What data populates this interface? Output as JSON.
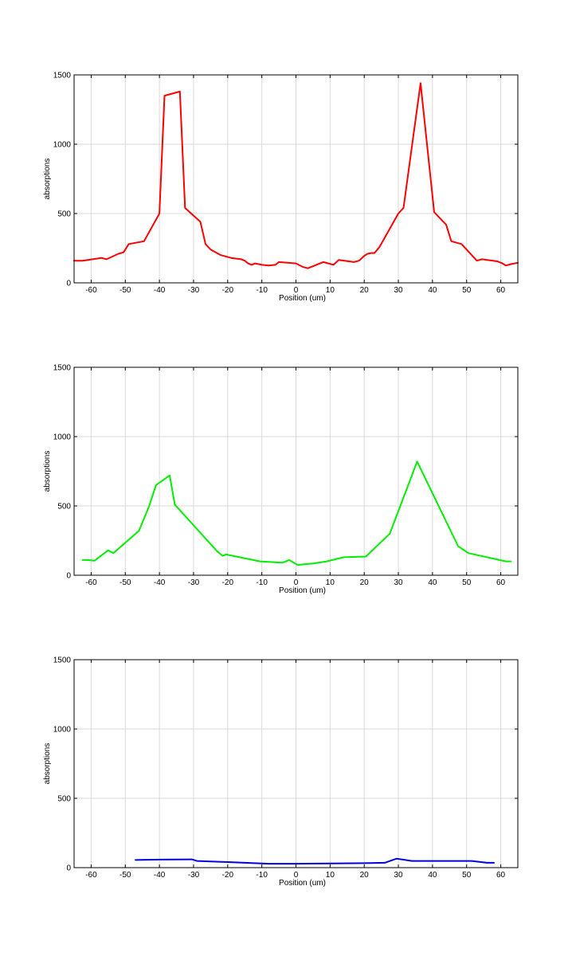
{
  "chart_data": [
    {
      "type": "line",
      "title": "",
      "xlabel": "Position (um)",
      "ylabel": "absorptions",
      "xlim": [
        -65,
        65
      ],
      "ylim": [
        0,
        1500
      ],
      "xticks": [
        -60,
        -50,
        -40,
        -30,
        -20,
        -10,
        0,
        10,
        20,
        30,
        40,
        50,
        60
      ],
      "yticks": [
        0,
        500,
        1000,
        1500
      ],
      "grid": true,
      "series": [
        {
          "color": "#ff0000",
          "x": [
            -65,
            -62.5,
            -57,
            -55.5,
            -52,
            -50.5,
            -49,
            -44.5,
            -40,
            -38.5,
            -34,
            -32.5,
            -28,
            -26.5,
            -25,
            -22,
            -19,
            -16,
            -15,
            -14,
            -13,
            -12,
            -10,
            -8,
            -6,
            -5,
            0,
            2,
            3.5,
            8,
            11,
            12.5,
            17,
            18.5,
            20,
            21,
            22,
            23,
            24.5,
            30,
            31.5,
            36.5,
            40.5,
            44,
            45.5,
            48.5,
            53,
            54.5,
            59,
            60.5,
            61.5,
            63,
            65
          ],
          "y": [
            160,
            160,
            180,
            170,
            210,
            220,
            280,
            300,
            500,
            1350,
            1380,
            540,
            440,
            280,
            240,
            200,
            180,
            170,
            160,
            140,
            130,
            140,
            130,
            125,
            130,
            150,
            140,
            115,
            105,
            150,
            130,
            165,
            150,
            160,
            195,
            210,
            215,
            215,
            260,
            500,
            540,
            1440,
            510,
            420,
            300,
            280,
            160,
            170,
            155,
            140,
            125,
            135,
            145
          ]
        }
      ]
    },
    {
      "type": "line",
      "title": "",
      "xlabel": "Position (um)",
      "ylabel": "absorptions",
      "xlim": [
        -65,
        65
      ],
      "ylim": [
        0,
        1500
      ],
      "xticks": [
        -60,
        -50,
        -40,
        -30,
        -20,
        -10,
        0,
        10,
        20,
        30,
        40,
        50,
        60
      ],
      "yticks": [
        0,
        500,
        1000,
        1500
      ],
      "grid": true,
      "series": [
        {
          "color": "#00ee00",
          "x": [
            -62.5,
            -61,
            -59,
            -55,
            -53.5,
            -46,
            -43,
            -41,
            -37,
            -35.5,
            -23,
            -21.5,
            -20.5,
            -10.5,
            -4,
            -2,
            0.5,
            5,
            9,
            14,
            20.5,
            27.5,
            35.5,
            47.5,
            50.5,
            61.5,
            63
          ],
          "y": [
            110,
            110,
            105,
            180,
            160,
            320,
            500,
            650,
            720,
            510,
            170,
            140,
            150,
            100,
            90,
            110,
            75,
            85,
            100,
            130,
            135,
            300,
            820,
            210,
            160,
            100,
            100
          ]
        }
      ]
    },
    {
      "type": "line",
      "title": "",
      "xlabel": "Position (um)",
      "ylabel": "absorptions",
      "xlim": [
        -65,
        65
      ],
      "ylim": [
        0,
        1500
      ],
      "xticks": [
        -60,
        -50,
        -40,
        -30,
        -20,
        -10,
        0,
        10,
        20,
        30,
        40,
        50,
        60
      ],
      "yticks": [
        0,
        500,
        1000,
        1500
      ],
      "grid": true,
      "series": [
        {
          "color": "#0000dd",
          "x": [
            -47,
            -40,
            -30.5,
            -29,
            -20,
            -10,
            -8,
            0,
            10,
            20,
            26,
            29.5,
            34,
            40,
            51.5,
            56,
            58
          ],
          "y": [
            55,
            58,
            60,
            48,
            40,
            30,
            28,
            28,
            30,
            32,
            35,
            65,
            48,
            48,
            48,
            35,
            35
          ]
        }
      ]
    }
  ]
}
